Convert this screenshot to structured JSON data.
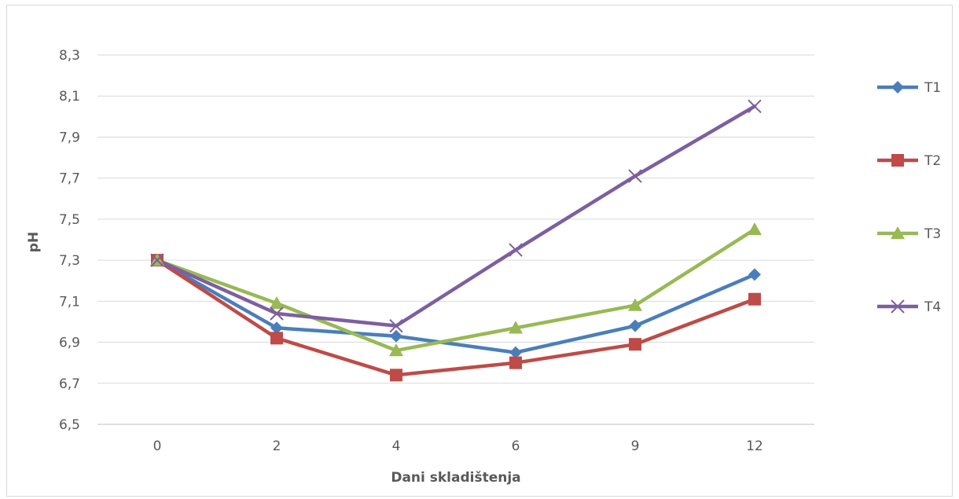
{
  "chart_data": {
    "type": "line",
    "title": "",
    "xlabel": "Dani skladištenja",
    "ylabel": "pH",
    "categories": [
      "0",
      "2",
      "4",
      "6",
      "9",
      "12"
    ],
    "ylim": [
      6.5,
      8.3
    ],
    "yticks": [
      "6,5",
      "6,7",
      "6,9",
      "7,1",
      "7,3",
      "7,5",
      "7,7",
      "7,9",
      "8,1",
      "8,3"
    ],
    "grid": true,
    "legend_position": "right",
    "series": [
      {
        "name": "T1",
        "color": "#4a7ebb",
        "marker": "diamond",
        "values": [
          7.3,
          6.97,
          6.93,
          6.85,
          6.98,
          7.23
        ]
      },
      {
        "name": "T2",
        "color": "#be4b48",
        "marker": "square",
        "values": [
          7.3,
          6.92,
          6.74,
          6.8,
          6.89,
          7.11
        ]
      },
      {
        "name": "T3",
        "color": "#98b954",
        "marker": "triangle",
        "values": [
          7.3,
          7.09,
          6.86,
          6.97,
          7.08,
          7.45
        ]
      },
      {
        "name": "T4",
        "color": "#7d5fa0",
        "marker": "x",
        "values": [
          7.3,
          7.04,
          6.98,
          7.35,
          7.71,
          8.05
        ]
      }
    ]
  }
}
